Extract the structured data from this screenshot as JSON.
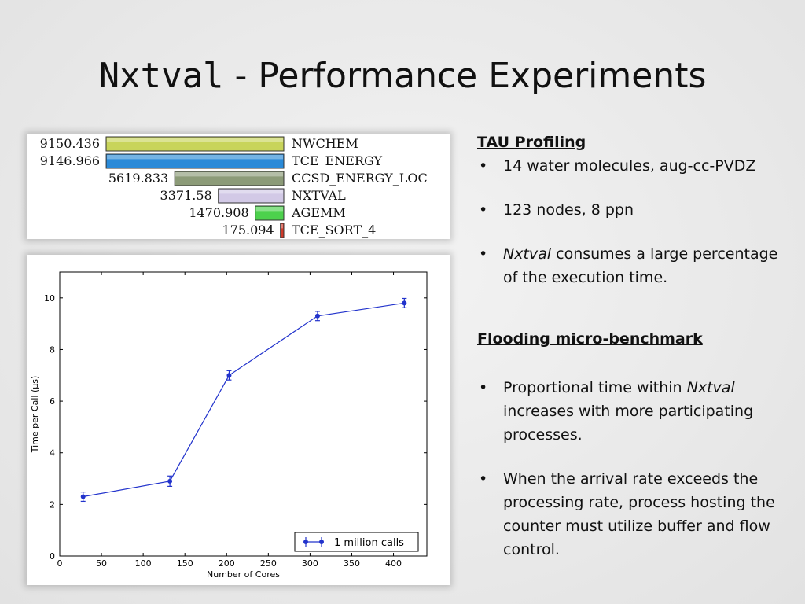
{
  "slide": {
    "title_mono": "Nxtval",
    "title_rest": " - Performance Experiments"
  },
  "tau_profile": {
    "rows": [
      {
        "value": "9150.436",
        "name": "NWCHEM",
        "amount": 9150.436,
        "color": "#c8d45a"
      },
      {
        "value": "9146.966",
        "name": "TCE_ENERGY",
        "amount": 9146.966,
        "color": "#2a8ad8"
      },
      {
        "value": "5619.833",
        "name": "CCSD_ENERGY_LOC",
        "amount": 5619.833,
        "color": "#8c9b78"
      },
      {
        "value": "3371.58",
        "name": "NXTVAL",
        "amount": 3371.58,
        "color": "#d2c9e6"
      },
      {
        "value": "1470.908",
        "name": "AGEMM",
        "amount": 1470.908,
        "color": "#4cd14c"
      },
      {
        "value": "175.094",
        "name": "TCE_SORT_4",
        "amount": 175.094,
        "color": "#d03a2a"
      }
    ]
  },
  "chart_data": {
    "type": "line",
    "x": [
      28,
      132,
      203,
      309,
      413
    ],
    "series": [
      {
        "name": "1 million calls",
        "values": [
          2.3,
          2.9,
          7.0,
          9.3,
          9.8
        ],
        "errors": [
          0.18,
          0.2,
          0.18,
          0.18,
          0.18
        ],
        "color": "#2233cc"
      }
    ],
    "xlabel": "Number of Cores",
    "ylabel": "Time per Call (μs)",
    "xlim": [
      0,
      440
    ],
    "ylim": [
      0,
      11
    ],
    "xticks": [
      0,
      50,
      100,
      150,
      200,
      250,
      300,
      350,
      400
    ],
    "yticks": [
      0,
      2,
      4,
      6,
      8,
      10
    ],
    "grid": false,
    "legend_position": "bottom-right"
  },
  "right": {
    "tau_heading": "TAU Profiling",
    "b1": "14 water molecules, aug-cc-PVDZ",
    "b2": "123 nodes, 8 ppn",
    "b3_em": "Nxtval",
    "b3_rest": " consumes a large percentage of the execution time.",
    "flood_heading": "Flooding micro-benchmark",
    "b4_pre": "Proportional time within ",
    "b4_em": "Nxtval",
    "b4_post": " increases with more participating processes.",
    "b5": "When the arrival rate exceeds the processing rate, process hosting the counter must utilize buffer and flow control.",
    "bullet_char": "•"
  }
}
